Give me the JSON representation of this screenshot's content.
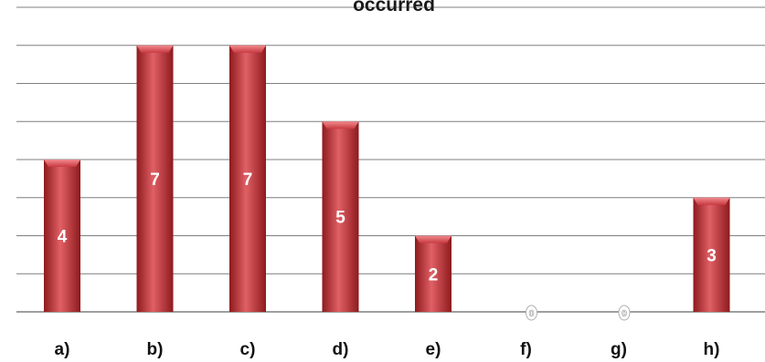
{
  "chart_data": {
    "type": "bar",
    "title": "occurred",
    "categories": [
      "a)",
      "b)",
      "c)",
      "d)",
      "e)",
      "f)",
      "g)",
      "h)"
    ],
    "values": [
      4,
      7,
      7,
      5,
      2,
      0,
      0,
      3
    ],
    "data_labels": [
      "4",
      "7",
      "7",
      "5",
      "2",
      "0",
      "0",
      "3"
    ],
    "ylim": [
      0,
      8
    ],
    "grid": true,
    "bar_color": "#c0282d",
    "bar_highlight": "#e06065",
    "bar_shadow": "#8e1a1e"
  }
}
